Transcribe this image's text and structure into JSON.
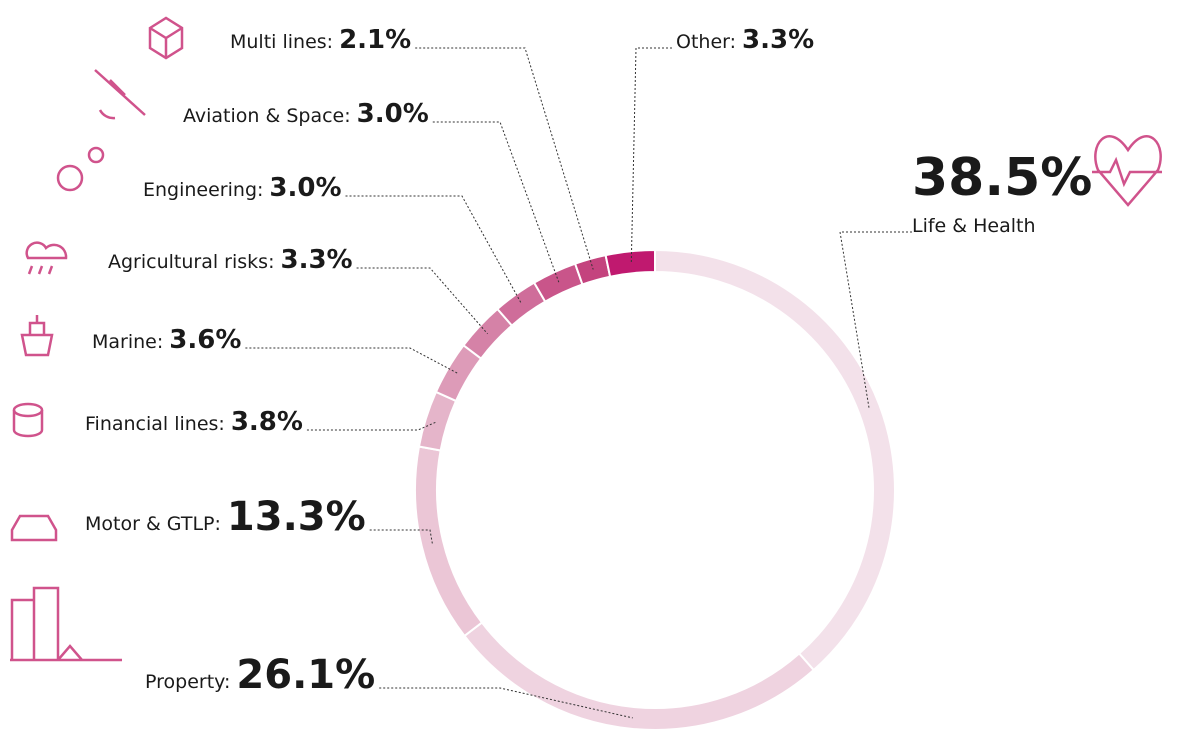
{
  "chart_data": {
    "type": "donut",
    "categories": [
      "Life & Health",
      "Property:",
      "Motor & GTLP:",
      "Financial lines:",
      "Marine:",
      "Agricultural risks:",
      "Engineering:",
      "Aviation & Space:",
      "Multi lines:",
      "Other:"
    ],
    "values": [
      38.5,
      26.1,
      13.3,
      3.8,
      3.6,
      3.3,
      3.0,
      3.0,
      2.1,
      3.3
    ],
    "value_labels": [
      "38.5%",
      "26.1%",
      "13.3%",
      "3.8%",
      "3.6%",
      "3.3%",
      "3.0%",
      "3.0%",
      "2.1%",
      "3.3%"
    ],
    "colors": [
      "#f3e1ea",
      "#efd3e0",
      "#ebc6d6",
      "#e5b5ca",
      "#dd9bb8",
      "#d582a7",
      "#cf6d9a",
      "#c9558a",
      "#c4437e",
      "#c0196f"
    ]
  }
}
